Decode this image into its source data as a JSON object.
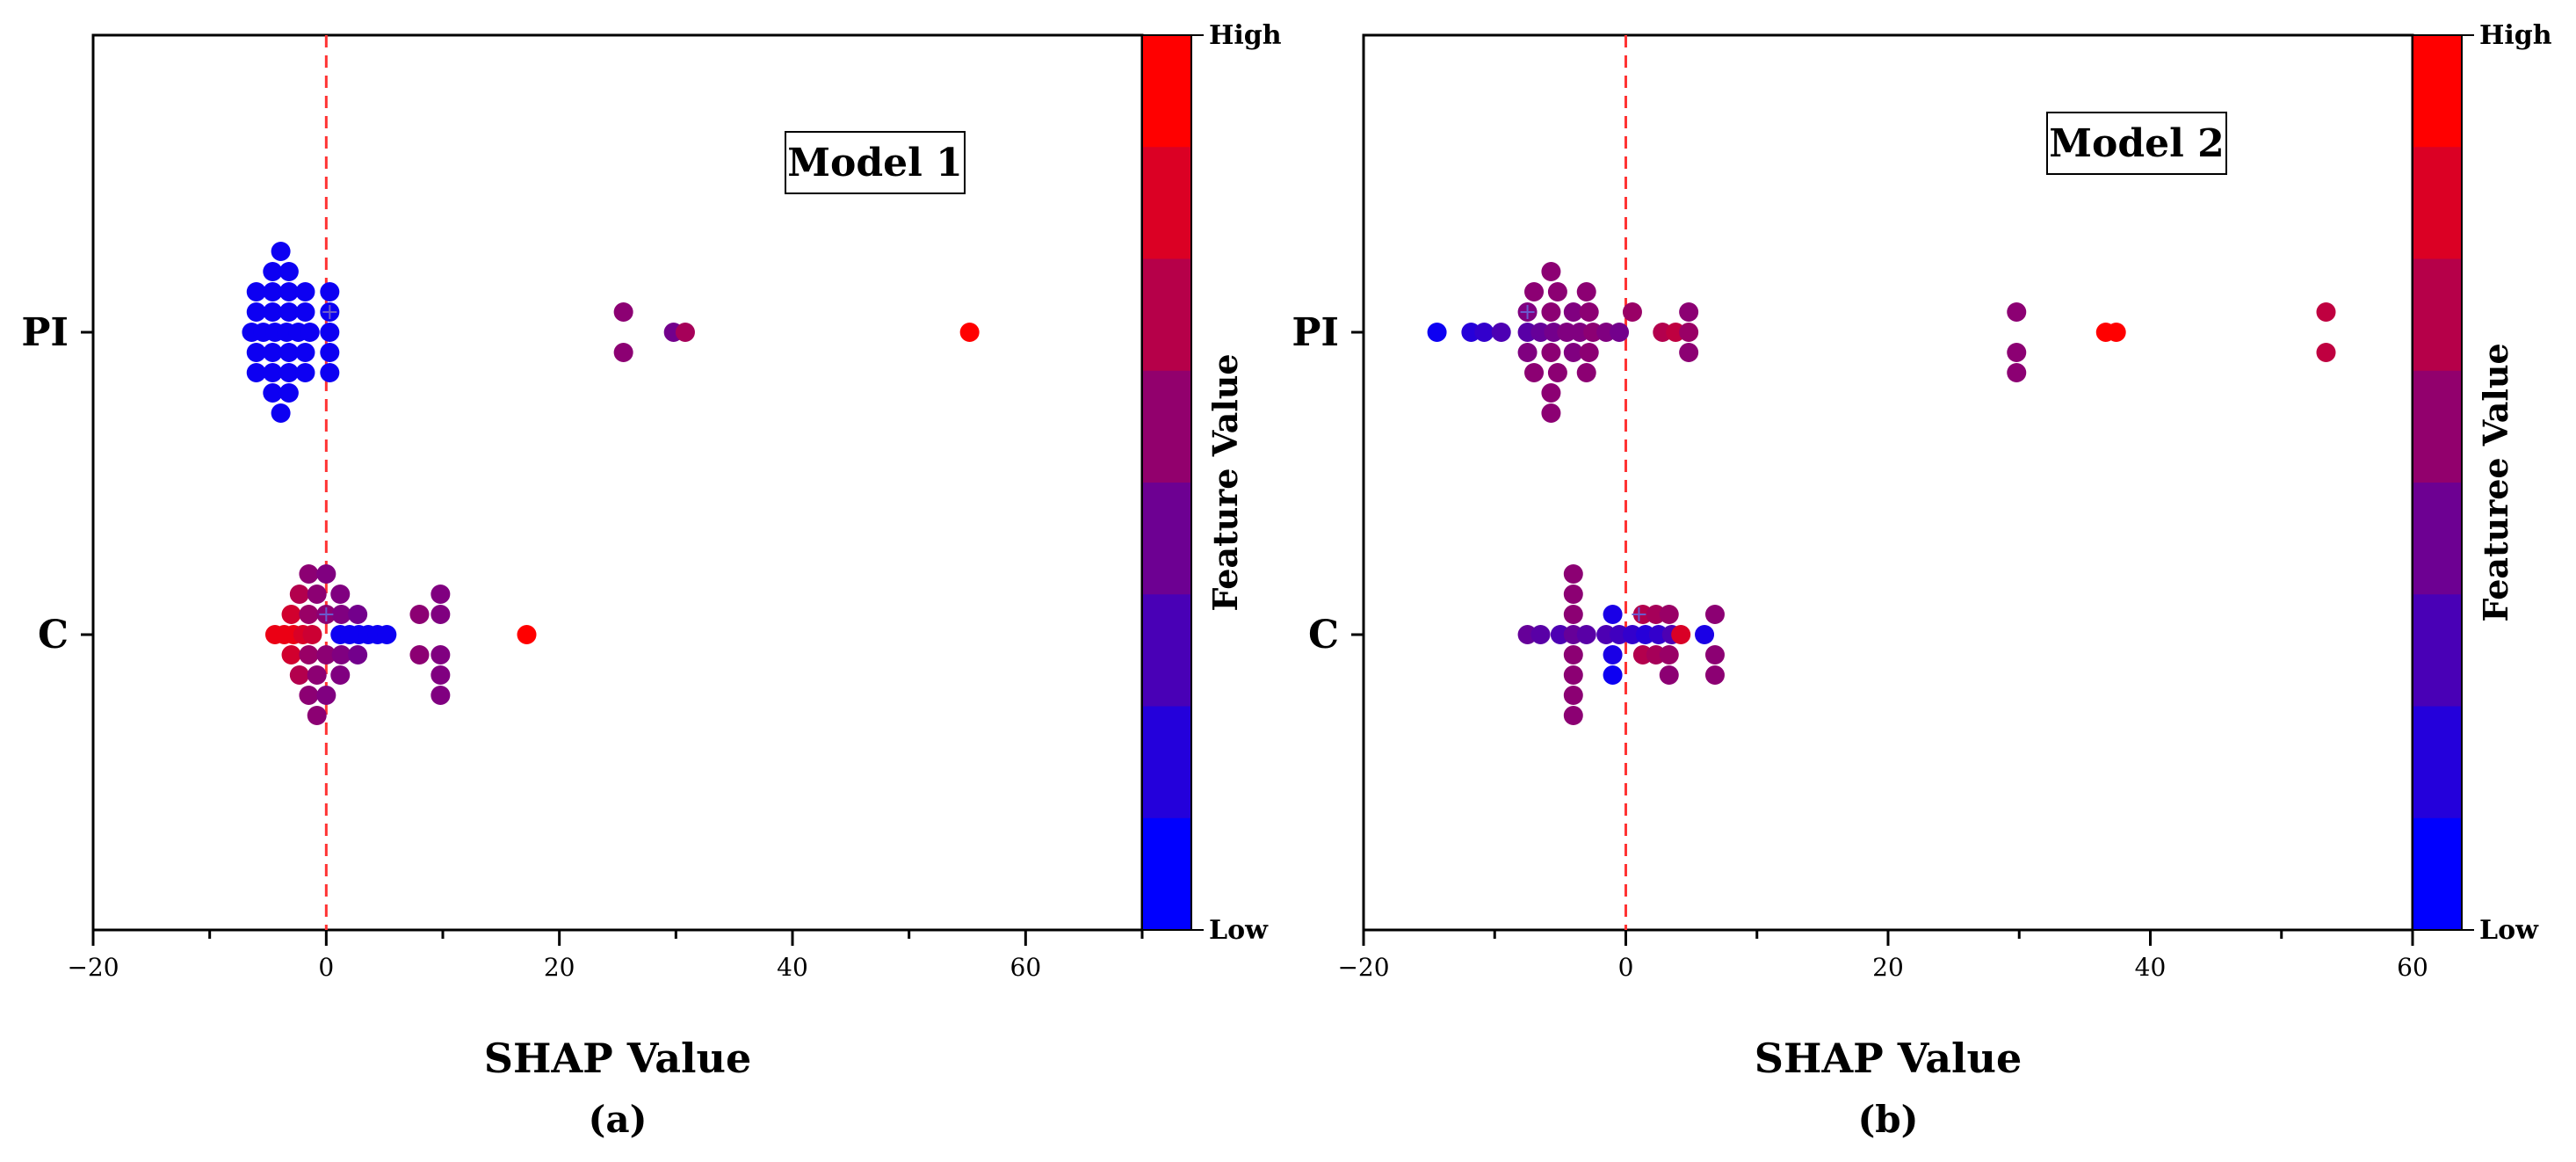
{
  "chart_data": [
    {
      "type": "scatter",
      "subtype": "shap-beeswarm",
      "panel_label": "(a)",
      "model_label": "Model 1",
      "xlabel": "SHAP Value",
      "ylabel": "",
      "xlim": [
        -20,
        70
      ],
      "xticks": [
        -20,
        0,
        20,
        40,
        60
      ],
      "xtick_labels": [
        "−20",
        "0",
        "20",
        "40",
        "60"
      ],
      "categories": [
        "PI",
        "C"
      ],
      "colorbar": {
        "title": "Feature Value",
        "high_label": "High",
        "low_label": "Low",
        "low_color": "#0000ff",
        "high_color": "#ff0000"
      },
      "series": [
        {
          "name": "PI",
          "mean_marker_x": 0.3,
          "points": [
            {
              "x": -6.4,
              "dy": 0,
              "f": 0.05
            },
            {
              "x": -5.4,
              "dy": 0,
              "f": 0.05
            },
            {
              "x": -4.4,
              "dy": 0,
              "f": 0.05
            },
            {
              "x": -3.4,
              "dy": 0,
              "f": 0.05
            },
            {
              "x": -2.4,
              "dy": 0,
              "f": 0.05
            },
            {
              "x": -1.4,
              "dy": 0,
              "f": 0.05
            },
            {
              "x": 0.3,
              "dy": 0,
              "f": 0.05
            },
            {
              "x": -6.0,
              "dy": 1,
              "f": 0.05
            },
            {
              "x": -4.6,
              "dy": 1,
              "f": 0.05
            },
            {
              "x": -3.2,
              "dy": 1,
              "f": 0.05
            },
            {
              "x": -1.8,
              "dy": 1,
              "f": 0.05
            },
            {
              "x": 0.3,
              "dy": 1,
              "f": 0.05
            },
            {
              "x": -6.0,
              "dy": -1,
              "f": 0.05
            },
            {
              "x": -4.6,
              "dy": -1,
              "f": 0.05
            },
            {
              "x": -3.2,
              "dy": -1,
              "f": 0.05
            },
            {
              "x": -1.8,
              "dy": -1,
              "f": 0.05
            },
            {
              "x": 0.3,
              "dy": -1,
              "f": 0.05
            },
            {
              "x": -6.0,
              "dy": 2,
              "f": 0.05
            },
            {
              "x": -4.6,
              "dy": 2,
              "f": 0.05
            },
            {
              "x": -3.2,
              "dy": 2,
              "f": 0.05
            },
            {
              "x": -1.8,
              "dy": 2,
              "f": 0.05
            },
            {
              "x": 0.3,
              "dy": 2,
              "f": 0.05
            },
            {
              "x": -6.0,
              "dy": -2,
              "f": 0.05
            },
            {
              "x": -4.6,
              "dy": -2,
              "f": 0.05
            },
            {
              "x": -3.2,
              "dy": -2,
              "f": 0.05
            },
            {
              "x": -1.8,
              "dy": -2,
              "f": 0.05
            },
            {
              "x": 0.3,
              "dy": -2,
              "f": 0.05
            },
            {
              "x": -4.6,
              "dy": 3,
              "f": 0.05
            },
            {
              "x": -3.2,
              "dy": 3,
              "f": 0.05
            },
            {
              "x": -4.6,
              "dy": -3,
              "f": 0.05
            },
            {
              "x": -3.2,
              "dy": -3,
              "f": 0.05
            },
            {
              "x": -3.9,
              "dy": 4,
              "f": 0.05
            },
            {
              "x": -3.9,
              "dy": -4,
              "f": 0.05
            },
            {
              "x": 25.5,
              "dy": 1,
              "f": 0.55
            },
            {
              "x": 25.5,
              "dy": -1,
              "f": 0.55
            },
            {
              "x": 29.8,
              "dy": 0,
              "f": 0.45
            },
            {
              "x": 30.8,
              "dy": 0,
              "f": 0.65
            },
            {
              "x": 55.2,
              "dy": 0,
              "f": 1.0
            }
          ]
        },
        {
          "name": "C",
          "mean_marker_x": 0.0,
          "points": [
            {
              "x": -4.4,
              "dy": 0,
              "f": 0.92
            },
            {
              "x": -3.6,
              "dy": 0,
              "f": 0.92
            },
            {
              "x": -2.8,
              "dy": 0,
              "f": 0.92
            },
            {
              "x": -2.0,
              "dy": 0,
              "f": 0.85
            },
            {
              "x": -1.2,
              "dy": 0,
              "f": 0.8
            },
            {
              "x": 1.2,
              "dy": 0,
              "f": 0.05
            },
            {
              "x": 2.0,
              "dy": 0,
              "f": 0.05
            },
            {
              "x": 2.8,
              "dy": 0,
              "f": 0.05
            },
            {
              "x": 3.6,
              "dy": 0,
              "f": 0.05
            },
            {
              "x": 4.4,
              "dy": 0,
              "f": 0.05
            },
            {
              "x": 5.2,
              "dy": 0,
              "f": 0.05
            },
            {
              "x": -3.0,
              "dy": 1,
              "f": 0.82
            },
            {
              "x": -1.5,
              "dy": 1,
              "f": 0.6
            },
            {
              "x": 0.0,
              "dy": 1,
              "f": 0.55
            },
            {
              "x": 1.3,
              "dy": 1,
              "f": 0.5
            },
            {
              "x": 2.7,
              "dy": 1,
              "f": 0.45
            },
            {
              "x": -3.0,
              "dy": -1,
              "f": 0.82
            },
            {
              "x": -1.5,
              "dy": -1,
              "f": 0.6
            },
            {
              "x": 0.0,
              "dy": -1,
              "f": 0.55
            },
            {
              "x": 1.3,
              "dy": -1,
              "f": 0.5
            },
            {
              "x": 2.7,
              "dy": -1,
              "f": 0.45
            },
            {
              "x": -2.3,
              "dy": 2,
              "f": 0.7
            },
            {
              "x": -0.8,
              "dy": 2,
              "f": 0.55
            },
            {
              "x": 1.2,
              "dy": 2,
              "f": 0.5
            },
            {
              "x": -2.3,
              "dy": -2,
              "f": 0.7
            },
            {
              "x": -0.8,
              "dy": -2,
              "f": 0.55
            },
            {
              "x": 1.2,
              "dy": -2,
              "f": 0.5
            },
            {
              "x": -1.5,
              "dy": 3,
              "f": 0.55
            },
            {
              "x": 0.0,
              "dy": 3,
              "f": 0.5
            },
            {
              "x": -1.5,
              "dy": -3,
              "f": 0.55
            },
            {
              "x": 0.0,
              "dy": -3,
              "f": 0.5
            },
            {
              "x": -0.8,
              "dy": -4,
              "f": 0.55
            },
            {
              "x": 8.0,
              "dy": 1,
              "f": 0.55
            },
            {
              "x": 8.0,
              "dy": -1,
              "f": 0.55
            },
            {
              "x": 9.8,
              "dy": 2,
              "f": 0.5
            },
            {
              "x": 9.8,
              "dy": 1,
              "f": 0.5
            },
            {
              "x": 9.8,
              "dy": -1,
              "f": 0.5
            },
            {
              "x": 9.8,
              "dy": -2,
              "f": 0.5
            },
            {
              "x": 9.8,
              "dy": -3,
              "f": 0.5
            },
            {
              "x": 17.2,
              "dy": 0,
              "f": 1.0
            }
          ]
        }
      ]
    },
    {
      "type": "scatter",
      "subtype": "shap-beeswarm",
      "panel_label": "(b)",
      "model_label": "Model 2",
      "xlabel": "SHAP Value",
      "ylabel": "",
      "xlim": [
        -20,
        60
      ],
      "xticks": [
        -20,
        0,
        20,
        40,
        60
      ],
      "xtick_labels": [
        "−20",
        "0",
        "20",
        "40",
        "60"
      ],
      "categories": [
        "PI",
        "C"
      ],
      "colorbar": {
        "title": "Featuree Value",
        "high_label": "High",
        "low_label": "Low",
        "low_color": "#0000ff",
        "high_color": "#ff0000"
      },
      "series": [
        {
          "name": "PI",
          "mean_marker_x": -7.5,
          "points": [
            {
              "x": -14.4,
              "dy": 0,
              "f": 0.05
            },
            {
              "x": -11.8,
              "dy": 0,
              "f": 0.15
            },
            {
              "x": -10.8,
              "dy": 0,
              "f": 0.2
            },
            {
              "x": -9.5,
              "dy": 0,
              "f": 0.3
            },
            {
              "x": -7.5,
              "dy": 0,
              "f": 0.35
            },
            {
              "x": -6.5,
              "dy": 0,
              "f": 0.4
            },
            {
              "x": -5.5,
              "dy": 0,
              "f": 0.45
            },
            {
              "x": -4.5,
              "dy": 0,
              "f": 0.5
            },
            {
              "x": -3.5,
              "dy": 0,
              "f": 0.5
            },
            {
              "x": -2.5,
              "dy": 0,
              "f": 0.55
            },
            {
              "x": -1.5,
              "dy": 0,
              "f": 0.5
            },
            {
              "x": -0.5,
              "dy": 0,
              "f": 0.45
            },
            {
              "x": 2.8,
              "dy": 0,
              "f": 0.7
            },
            {
              "x": 3.8,
              "dy": 0,
              "f": 0.75
            },
            {
              "x": 4.8,
              "dy": 0,
              "f": 0.6
            },
            {
              "x": -7.5,
              "dy": 1,
              "f": 0.5
            },
            {
              "x": -5.7,
              "dy": 1,
              "f": 0.55
            },
            {
              "x": -4.0,
              "dy": 1,
              "f": 0.5
            },
            {
              "x": -2.8,
              "dy": 1,
              "f": 0.55
            },
            {
              "x": 0.5,
              "dy": 1,
              "f": 0.6
            },
            {
              "x": 4.8,
              "dy": 1,
              "f": 0.55
            },
            {
              "x": -7.5,
              "dy": -1,
              "f": 0.5
            },
            {
              "x": -5.7,
              "dy": -1,
              "f": 0.55
            },
            {
              "x": -4.0,
              "dy": -1,
              "f": 0.5
            },
            {
              "x": -2.8,
              "dy": -1,
              "f": 0.55
            },
            {
              "x": 4.8,
              "dy": -1,
              "f": 0.55
            },
            {
              "x": -7.0,
              "dy": 2,
              "f": 0.55
            },
            {
              "x": -5.2,
              "dy": 2,
              "f": 0.55
            },
            {
              "x": -3.0,
              "dy": 2,
              "f": 0.55
            },
            {
              "x": -7.0,
              "dy": -2,
              "f": 0.55
            },
            {
              "x": -5.2,
              "dy": -2,
              "f": 0.55
            },
            {
              "x": -3.0,
              "dy": -2,
              "f": 0.55
            },
            {
              "x": -5.7,
              "dy": 3,
              "f": 0.55
            },
            {
              "x": -5.7,
              "dy": -3,
              "f": 0.55
            },
            {
              "x": -5.7,
              "dy": -4,
              "f": 0.55
            },
            {
              "x": 29.8,
              "dy": 1,
              "f": 0.55
            },
            {
              "x": 29.8,
              "dy": -1,
              "f": 0.55
            },
            {
              "x": 29.8,
              "dy": -2,
              "f": 0.55
            },
            {
              "x": 36.6,
              "dy": 0,
              "f": 1.0
            },
            {
              "x": 37.4,
              "dy": 0,
              "f": 1.0
            },
            {
              "x": 53.4,
              "dy": 1,
              "f": 0.75
            },
            {
              "x": 53.4,
              "dy": -1,
              "f": 0.75
            }
          ]
        },
        {
          "name": "C",
          "mean_marker_x": 1.0,
          "points": [
            {
              "x": -7.5,
              "dy": 0,
              "f": 0.4
            },
            {
              "x": -6.5,
              "dy": 0,
              "f": 0.35
            },
            {
              "x": -5.0,
              "dy": 0,
              "f": 0.3
            },
            {
              "x": -4.0,
              "dy": 0,
              "f": 0.4
            },
            {
              "x": -3.0,
              "dy": 0,
              "f": 0.35
            },
            {
              "x": -1.5,
              "dy": 0,
              "f": 0.3
            },
            {
              "x": -0.5,
              "dy": 0,
              "f": 0.25
            },
            {
              "x": 0.5,
              "dy": 0,
              "f": 0.2
            },
            {
              "x": 1.5,
              "dy": 0,
              "f": 0.15
            },
            {
              "x": 2.5,
              "dy": 0,
              "f": 0.2
            },
            {
              "x": 3.5,
              "dy": 0,
              "f": 0.3
            },
            {
              "x": 4.2,
              "dy": 0,
              "f": 0.85
            },
            {
              "x": 6.0,
              "dy": 0,
              "f": 0.1
            },
            {
              "x": -4.0,
              "dy": 1,
              "f": 0.55
            },
            {
              "x": -1.0,
              "dy": 1,
              "f": 0.1
            },
            {
              "x": 1.3,
              "dy": 1,
              "f": 0.7
            },
            {
              "x": 2.3,
              "dy": 1,
              "f": 0.65
            },
            {
              "x": 3.3,
              "dy": 1,
              "f": 0.6
            },
            {
              "x": 6.8,
              "dy": 1,
              "f": 0.55
            },
            {
              "x": -4.0,
              "dy": -1,
              "f": 0.55
            },
            {
              "x": -1.0,
              "dy": -1,
              "f": 0.1
            },
            {
              "x": 1.3,
              "dy": -1,
              "f": 0.7
            },
            {
              "x": 2.3,
              "dy": -1,
              "f": 0.65
            },
            {
              "x": 3.3,
              "dy": -1,
              "f": 0.6
            },
            {
              "x": 6.8,
              "dy": -1,
              "f": 0.55
            },
            {
              "x": -4.0,
              "dy": 2,
              "f": 0.55
            },
            {
              "x": -1.0,
              "dy": -2,
              "f": 0.05
            },
            {
              "x": 3.3,
              "dy": -2,
              "f": 0.55
            },
            {
              "x": 6.8,
              "dy": -2,
              "f": 0.55
            },
            {
              "x": -4.0,
              "dy": -2,
              "f": 0.55
            },
            {
              "x": -4.0,
              "dy": 3,
              "f": 0.55
            },
            {
              "x": -4.0,
              "dy": -3,
              "f": 0.55
            },
            {
              "x": -4.0,
              "dy": -4,
              "f": 0.55
            }
          ]
        }
      ]
    }
  ]
}
